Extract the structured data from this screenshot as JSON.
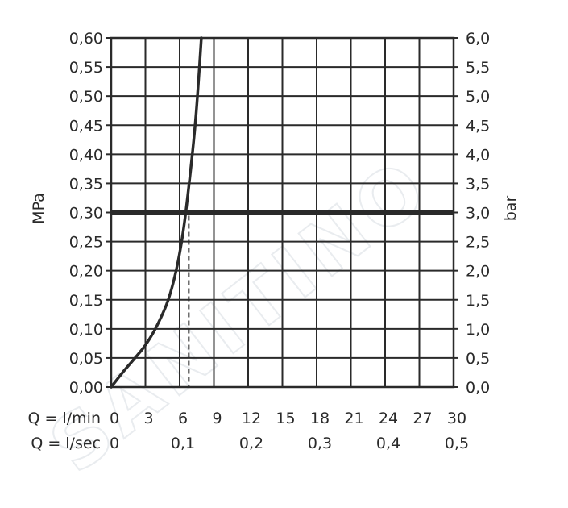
{
  "watermark": "SANITINO",
  "chart_data": {
    "type": "line",
    "left_axis": {
      "label": "MPa",
      "ticks": [
        "0,60",
        "0,55",
        "0,50",
        "0,45",
        "0,40",
        "0,35",
        "0,30",
        "0,25",
        "0,20",
        "0,15",
        "0,10",
        "0,05",
        "0,00"
      ],
      "range": [
        0,
        0.6
      ]
    },
    "right_axis": {
      "label": "bar",
      "ticks": [
        "6,0",
        "5,5",
        "5,0",
        "4,5",
        "4,0",
        "3,5",
        "3,0",
        "2,5",
        "2,0",
        "1,5",
        "1,0",
        "0,5",
        "0,0"
      ],
      "range": [
        0,
        6
      ]
    },
    "x_axis_primary": {
      "label": "Q = l/min",
      "ticks": [
        "0",
        "3",
        "6",
        "9",
        "12",
        "15",
        "18",
        "21",
        "24",
        "27",
        "30"
      ],
      "range": [
        0,
        30
      ]
    },
    "x_axis_secondary": {
      "label": "Q = l/sec",
      "ticks": [
        "0",
        "0,1",
        "0,2",
        "0,3",
        "0,4",
        "0,5"
      ]
    },
    "grid": true,
    "series": [
      {
        "x": [
          0,
          1,
          2,
          3,
          4,
          5,
          5.8,
          6.4,
          7.0,
          7.4,
          7.7,
          7.9
        ],
        "y": [
          0,
          0.025,
          0.048,
          0.072,
          0.105,
          0.15,
          0.21,
          0.28,
          0.38,
          0.46,
          0.54,
          0.6
        ]
      }
    ],
    "reference_line": {
      "y": 0.3
    },
    "marker": {
      "x": 6.8,
      "y": 0.3
    }
  }
}
